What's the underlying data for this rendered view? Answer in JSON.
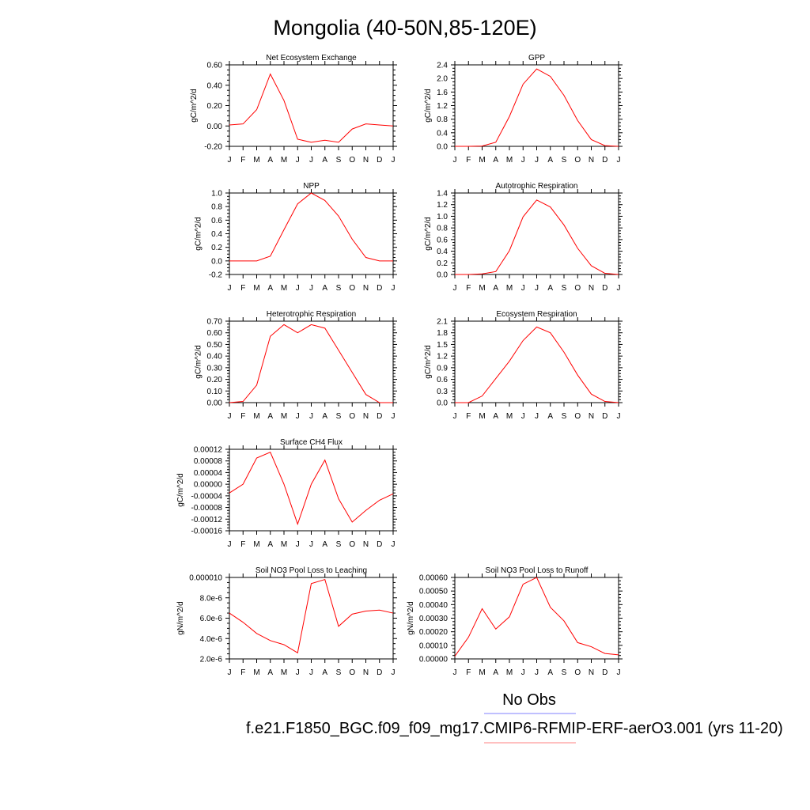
{
  "figure": {
    "title": "Mongolia (40-50N,85-120E)",
    "legend": [
      {
        "label": "No Obs",
        "color": "#8080ff"
      },
      {
        "label": "f.e21.F1850_BGC.f09_f09_mg17.CMIP6-RFMIP-ERF-aerO3.001 (yrs 11-20)",
        "color": "#ff8080"
      }
    ],
    "series_color": "#ff0000"
  },
  "chart_data": [
    {
      "type": "line",
      "title": "Net Ecosystem Exchange",
      "ylabel": "gC/m^2/d",
      "x": [
        "J",
        "F",
        "M",
        "A",
        "M",
        "J",
        "J",
        "A",
        "S",
        "O",
        "N",
        "D",
        "J"
      ],
      "ylim": [
        -0.2,
        0.6
      ],
      "yticks": [
        -0.2,
        0.0,
        0.2,
        0.4,
        0.6
      ],
      "ytick_labels": [
        "-0.20",
        "0.00",
        "0.20",
        "0.40",
        "0.60"
      ],
      "series": [
        {
          "values": [
            0.01,
            0.02,
            0.16,
            0.51,
            0.25,
            -0.13,
            -0.16,
            -0.14,
            -0.16,
            -0.03,
            0.02,
            0.01,
            0.0
          ]
        }
      ]
    },
    {
      "type": "line",
      "title": "GPP",
      "ylabel": "gC/m^2/d",
      "x": [
        "J",
        "F",
        "M",
        "A",
        "M",
        "J",
        "J",
        "A",
        "S",
        "O",
        "N",
        "D",
        "J"
      ],
      "ylim": [
        0,
        2.4
      ],
      "yticks": [
        0.0,
        0.4,
        0.8,
        1.2,
        1.6,
        2.0,
        2.4
      ],
      "ytick_labels": [
        "0.0",
        "0.4",
        "0.8",
        "1.2",
        "1.6",
        "2.0",
        "2.4"
      ],
      "series": [
        {
          "values": [
            0.0,
            0.0,
            0.01,
            0.12,
            0.88,
            1.83,
            2.28,
            2.06,
            1.5,
            0.76,
            0.2,
            0.02,
            0.0
          ]
        }
      ]
    },
    {
      "type": "line",
      "title": "NPP",
      "ylabel": "gC/m^2/d",
      "x": [
        "J",
        "F",
        "M",
        "A",
        "M",
        "J",
        "J",
        "A",
        "S",
        "O",
        "N",
        "D",
        "J"
      ],
      "ylim": [
        -0.2,
        1.0
      ],
      "yticks": [
        -0.2,
        0.0,
        0.2,
        0.4,
        0.6,
        0.8,
        1.0
      ],
      "ytick_labels": [
        "-0.2",
        "0.0",
        "0.2",
        "0.4",
        "0.6",
        "0.8",
        "1.0"
      ],
      "series": [
        {
          "values": [
            0.0,
            0.0,
            0.0,
            0.07,
            0.46,
            0.84,
            1.0,
            0.89,
            0.66,
            0.32,
            0.05,
            0.0,
            0.0
          ]
        }
      ]
    },
    {
      "type": "line",
      "title": "Autotrophic Respiration",
      "ylabel": "gC/m^2/d",
      "x": [
        "J",
        "F",
        "M",
        "A",
        "M",
        "J",
        "J",
        "A",
        "S",
        "O",
        "N",
        "D",
        "J"
      ],
      "ylim": [
        0,
        1.4
      ],
      "yticks": [
        0.0,
        0.2,
        0.4,
        0.6,
        0.8,
        1.0,
        1.2,
        1.4
      ],
      "ytick_labels": [
        "0.0",
        "0.2",
        "0.4",
        "0.6",
        "0.8",
        "1.0",
        "1.2",
        "1.4"
      ],
      "series": [
        {
          "values": [
            0.0,
            0.0,
            0.01,
            0.05,
            0.41,
            0.99,
            1.28,
            1.16,
            0.85,
            0.45,
            0.15,
            0.02,
            0.0
          ]
        }
      ]
    },
    {
      "type": "line",
      "title": "Heterotrophic Respiration",
      "ylabel": "gC/m^2/d",
      "x": [
        "J",
        "F",
        "M",
        "A",
        "M",
        "J",
        "J",
        "A",
        "S",
        "O",
        "N",
        "D",
        "J"
      ],
      "ylim": [
        0,
        0.7
      ],
      "yticks": [
        0.0,
        0.1,
        0.2,
        0.3,
        0.4,
        0.5,
        0.6,
        0.7
      ],
      "ytick_labels": [
        "0.00",
        "0.10",
        "0.20",
        "0.30",
        "0.40",
        "0.50",
        "0.60",
        "0.70"
      ],
      "series": [
        {
          "values": [
            0.0,
            0.01,
            0.15,
            0.57,
            0.67,
            0.6,
            0.67,
            0.64,
            0.45,
            0.26,
            0.07,
            0.0,
            0.0
          ]
        }
      ]
    },
    {
      "type": "line",
      "title": "Ecosystem Respiration",
      "ylabel": "gC/m^2/d",
      "x": [
        "J",
        "F",
        "M",
        "A",
        "M",
        "J",
        "J",
        "A",
        "S",
        "O",
        "N",
        "D",
        "J"
      ],
      "ylim": [
        0,
        2.1
      ],
      "yticks": [
        0.0,
        0.3,
        0.6,
        0.9,
        1.2,
        1.5,
        1.8,
        2.1
      ],
      "ytick_labels": [
        "0.0",
        "0.3",
        "0.6",
        "0.9",
        "1.2",
        "1.5",
        "1.8",
        "2.1"
      ],
      "series": [
        {
          "values": [
            0.0,
            0.0,
            0.17,
            0.62,
            1.07,
            1.6,
            1.95,
            1.8,
            1.3,
            0.71,
            0.22,
            0.03,
            0.0
          ]
        }
      ]
    },
    {
      "type": "line",
      "title": "Surface CH4 Flux",
      "ylabel": "gC/m^2/d",
      "x": [
        "J",
        "F",
        "M",
        "A",
        "M",
        "J",
        "J",
        "A",
        "S",
        "O",
        "N",
        "D",
        "J"
      ],
      "ylim": [
        -0.00016,
        0.00012
      ],
      "yticks": [
        -0.00016,
        -0.00012,
        -8e-05,
        -4e-05,
        0.0,
        4e-05,
        8e-05,
        0.00012
      ],
      "ytick_labels": [
        "-0.00016",
        "-0.00012",
        "-0.00008",
        "-0.00004",
        "0.00000",
        "0.00004",
        "0.00008",
        "0.00012"
      ],
      "series": [
        {
          "values": [
            -3e-05,
            0.0,
            9e-05,
            0.00011,
            0.0,
            -0.000137,
            0.0,
            8.3e-05,
            -5e-05,
            -0.00013,
            -9e-05,
            -5.5e-05,
            -3.3e-05
          ]
        }
      ]
    },
    {
      "type": "line",
      "title": "Soil NO3 Pool Loss to Leaching",
      "ylabel": "gN/m^2/d",
      "x": [
        "J",
        "F",
        "M",
        "A",
        "M",
        "J",
        "J",
        "A",
        "S",
        "O",
        "N",
        "D",
        "J"
      ],
      "ylim": [
        2e-06,
        1e-05
      ],
      "yticks": [
        2e-06,
        4e-06,
        6e-06,
        8e-06,
        1e-05
      ],
      "ytick_labels": [
        "2.0e-6",
        "4.0e-6",
        "6.0e-6",
        "8.0e-6",
        "0.000010"
      ],
      "series": [
        {
          "values": [
            6.5e-06,
            5.6e-06,
            4.5e-06,
            3.8e-06,
            3.4e-06,
            2.6e-06,
            9.4e-06,
            9.8e-06,
            5.2e-06,
            6.4e-06,
            6.7e-06,
            6.8e-06,
            6.5e-06
          ]
        }
      ]
    },
    {
      "type": "line",
      "title": "Soil NO3 Pool Loss to Runoff",
      "ylabel": "gN/m^2/d",
      "x": [
        "J",
        "F",
        "M",
        "A",
        "M",
        "J",
        "J",
        "A",
        "S",
        "O",
        "N",
        "D",
        "J"
      ],
      "ylim": [
        0,
        0.0006
      ],
      "yticks": [
        0.0,
        0.0001,
        0.0002,
        0.0003,
        0.0004,
        0.0005,
        0.0006
      ],
      "ytick_labels": [
        "0.00000",
        "0.00010",
        "0.00020",
        "0.00030",
        "0.00040",
        "0.00050",
        "0.00060"
      ],
      "series": [
        {
          "values": [
            2e-05,
            0.00016,
            0.00037,
            0.00022,
            0.00031,
            0.00055,
            0.0006,
            0.00038,
            0.00028,
            0.00012,
            9e-05,
            4e-05,
            3e-05
          ]
        }
      ]
    }
  ]
}
